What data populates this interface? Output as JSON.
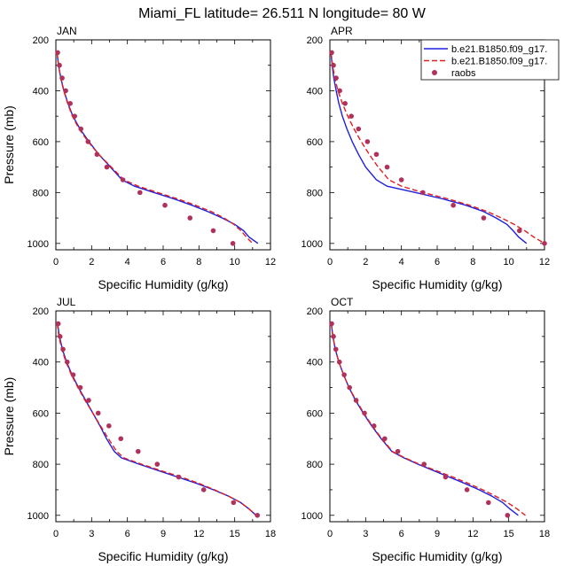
{
  "figure": {
    "title": "Miami_FL  latitude= 26.511 N longitude= 80 W"
  },
  "legend": {
    "items": [
      {
        "label": "b.e21.B1850.f09_g17.",
        "color": "#1f1fe0",
        "style": "solid"
      },
      {
        "label": "b.e21.B1850.f09_g17.",
        "color": "#e02020",
        "style": "dashed"
      },
      {
        "label": "raobs",
        "color": "#b0325a",
        "style": "marker"
      }
    ]
  },
  "chart_data": [
    {
      "type": "line",
      "panel": "JAN",
      "title": "JAN",
      "xlabel": "Specific Humidity (g/kg)",
      "ylabel": "Pressure (mb)",
      "xlim": [
        0,
        12
      ],
      "ylim": [
        1025,
        200
      ],
      "xticks": [
        0,
        2,
        4,
        6,
        8,
        10,
        12
      ],
      "yticks": [
        200,
        400,
        600,
        800,
        1000
      ],
      "y": [
        250,
        300,
        350,
        400,
        450,
        500,
        550,
        600,
        650,
        700,
        750,
        775,
        800,
        825,
        850,
        875,
        900,
        925,
        950,
        975,
        1000
      ],
      "series": [
        {
          "name": "b.e21.B1850.f09_g17.",
          "color": "#1f1fe0",
          "style": "solid",
          "values": [
            0.07,
            0.15,
            0.28,
            0.45,
            0.68,
            0.95,
            1.35,
            1.85,
            2.4,
            3.05,
            3.7,
            4.4,
            5.5,
            6.6,
            7.6,
            8.5,
            9.3,
            10.0,
            10.5,
            10.8,
            11.3
          ]
        },
        {
          "name": "b.e21.B1850.f09_g17.",
          "color": "#e02020",
          "style": "dashed",
          "values": [
            0.07,
            0.15,
            0.27,
            0.44,
            0.66,
            0.92,
            1.3,
            1.8,
            2.4,
            3.1,
            3.8,
            4.6,
            5.7,
            6.8,
            7.8,
            8.7,
            9.4,
            9.95,
            10.35,
            10.65,
            11.0
          ]
        }
      ],
      "points": {
        "name": "raobs",
        "y": [
          250,
          300,
          350,
          400,
          450,
          500,
          550,
          600,
          650,
          700,
          750,
          800,
          850,
          900,
          950,
          1000
        ],
        "x": [
          0.1,
          0.2,
          0.35,
          0.55,
          0.8,
          1.05,
          1.4,
          1.8,
          2.3,
          2.85,
          3.75,
          4.7,
          6.1,
          7.5,
          8.8,
          9.9
        ]
      }
    },
    {
      "type": "line",
      "panel": "APR",
      "title": "APR",
      "xlabel": "Specific Humidity (g/kg)",
      "ylabel": "",
      "xlim": [
        0,
        12
      ],
      "ylim": [
        1025,
        200
      ],
      "xticks": [
        0,
        2,
        4,
        6,
        8,
        10,
        12
      ],
      "yticks": [
        200,
        400,
        600,
        800,
        1000
      ],
      "y": [
        250,
        300,
        350,
        400,
        450,
        500,
        550,
        600,
        650,
        700,
        750,
        775,
        800,
        825,
        850,
        875,
        900,
        925,
        950,
        975,
        1000
      ],
      "series": [
        {
          "name": "b.e21.B1850.f09_g17.",
          "color": "#1f1fe0",
          "style": "solid",
          "values": [
            0.06,
            0.13,
            0.22,
            0.35,
            0.5,
            0.7,
            0.95,
            1.25,
            1.6,
            2.0,
            2.6,
            3.2,
            4.8,
            6.3,
            7.6,
            8.6,
            9.3,
            9.9,
            10.25,
            10.55,
            11.0
          ]
        },
        {
          "name": "b.e21.B1850.f09_g17.",
          "color": "#e02020",
          "style": "dashed",
          "values": [
            0.07,
            0.15,
            0.28,
            0.45,
            0.7,
            1.0,
            1.35,
            1.75,
            2.2,
            2.7,
            3.3,
            4.0,
            5.2,
            6.6,
            7.8,
            8.8,
            9.6,
            10.3,
            10.9,
            11.4,
            12.0
          ]
        }
      ],
      "points": {
        "name": "raobs",
        "y": [
          250,
          300,
          350,
          400,
          450,
          500,
          550,
          600,
          650,
          700,
          750,
          800,
          850,
          900,
          950,
          1000
        ],
        "x": [
          0.1,
          0.2,
          0.35,
          0.55,
          0.85,
          1.2,
          1.6,
          2.1,
          2.6,
          3.2,
          4.0,
          5.2,
          6.9,
          8.6,
          10.6,
          12.0
        ]
      }
    },
    {
      "type": "line",
      "panel": "JUL",
      "title": "JUL",
      "xlabel": "Specific Humidity (g/kg)",
      "ylabel": "Pressure (mb)",
      "xlim": [
        0,
        18
      ],
      "ylim": [
        1025,
        200
      ],
      "xticks": [
        0,
        3,
        6,
        9,
        12,
        15,
        18
      ],
      "yticks": [
        200,
        400,
        600,
        800,
        1000
      ],
      "y": [
        250,
        300,
        350,
        400,
        450,
        500,
        550,
        600,
        650,
        700,
        750,
        775,
        800,
        825,
        850,
        875,
        900,
        925,
        950,
        975,
        1000
      ],
      "series": [
        {
          "name": "b.e21.B1850.f09_g17.",
          "color": "#1f1fe0",
          "style": "solid",
          "values": [
            0.15,
            0.3,
            0.55,
            0.9,
            1.35,
            1.9,
            2.5,
            3.1,
            3.7,
            4.25,
            4.9,
            5.5,
            7.0,
            8.6,
            10.2,
            11.8,
            13.2,
            14.5,
            15.5,
            16.2,
            16.8
          ]
        },
        {
          "name": "b.e21.B1850.f09_g17.",
          "color": "#e02020",
          "style": "dashed",
          "values": [
            0.12,
            0.25,
            0.5,
            0.85,
            1.3,
            1.85,
            2.45,
            3.1,
            3.75,
            4.4,
            5.1,
            5.7,
            7.2,
            8.8,
            10.5,
            12.0,
            13.3,
            14.5,
            15.5,
            16.2,
            16.8
          ]
        }
      ],
      "points": {
        "name": "raobs",
        "y": [
          250,
          300,
          350,
          400,
          450,
          500,
          550,
          600,
          650,
          700,
          750,
          800,
          850,
          900,
          950,
          1000
        ],
        "x": [
          0.2,
          0.35,
          0.6,
          0.95,
          1.45,
          2.05,
          2.75,
          3.55,
          4.45,
          5.45,
          6.9,
          8.5,
          10.3,
          12.4,
          14.9,
          16.9
        ]
      }
    },
    {
      "type": "line",
      "panel": "OCT",
      "title": "OCT",
      "xlabel": "Specific Humidity (g/kg)",
      "ylabel": "",
      "xlim": [
        0,
        18
      ],
      "ylim": [
        1025,
        200
      ],
      "xticks": [
        0,
        3,
        6,
        9,
        12,
        15,
        18
      ],
      "yticks": [
        200,
        400,
        600,
        800,
        1000
      ],
      "y": [
        250,
        300,
        350,
        400,
        450,
        500,
        550,
        600,
        650,
        700,
        750,
        775,
        800,
        825,
        850,
        875,
        900,
        925,
        950,
        975,
        1000
      ],
      "series": [
        {
          "name": "b.e21.B1850.f09_g17.",
          "color": "#1f1fe0",
          "style": "solid",
          "values": [
            0.12,
            0.25,
            0.45,
            0.75,
            1.15,
            1.6,
            2.15,
            2.8,
            3.5,
            4.3,
            5.2,
            6.2,
            7.4,
            8.7,
            10.0,
            11.3,
            12.5,
            13.6,
            14.5,
            15.1,
            15.8
          ]
        },
        {
          "name": "b.e21.B1850.f09_g17.",
          "color": "#e02020",
          "style": "dashed",
          "values": [
            0.12,
            0.25,
            0.45,
            0.75,
            1.15,
            1.6,
            2.2,
            2.85,
            3.55,
            4.35,
            5.25,
            6.3,
            7.5,
            8.9,
            10.3,
            11.6,
            12.8,
            13.9,
            14.9,
            15.7,
            16.4
          ]
        }
      ],
      "points": {
        "name": "raobs",
        "y": [
          250,
          300,
          350,
          400,
          450,
          500,
          550,
          600,
          650,
          700,
          750,
          800,
          850,
          900,
          950,
          1000
        ],
        "x": [
          0.15,
          0.3,
          0.5,
          0.8,
          1.2,
          1.65,
          2.2,
          2.9,
          3.7,
          4.6,
          5.7,
          7.9,
          9.7,
          11.5,
          13.3,
          14.9
        ]
      }
    }
  ]
}
